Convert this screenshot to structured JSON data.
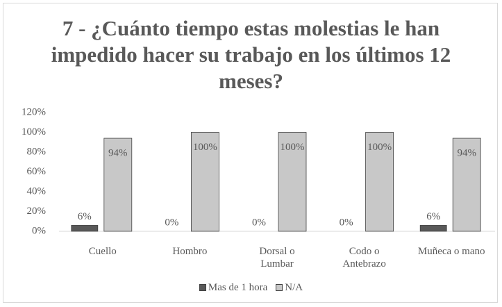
{
  "chart_data": {
    "type": "bar",
    "title": "7 - ¿Cuánto tiempo estas molestias le han impedido hacer su trabajo en los últimos 12 meses?",
    "categories": [
      "Cuello",
      "Hombro",
      "Dorsal o Lumbar",
      "Codo o Antebrazo",
      "Muñeca o mano"
    ],
    "series": [
      {
        "name": "Mas de 1 hora",
        "color": "#595959",
        "values": [
          6,
          0,
          0,
          0,
          6
        ],
        "value_labels": [
          "6%",
          "0%",
          "0%",
          "0%",
          "6%"
        ]
      },
      {
        "name": "N/A",
        "color": "#c8c8c8",
        "values": [
          94,
          100,
          100,
          100,
          94
        ],
        "value_labels": [
          "94%",
          "100%",
          "100%",
          "100%",
          "94%"
        ]
      }
    ],
    "ylim": [
      0,
      120
    ],
    "yticks": [
      {
        "value": 0,
        "label": "0%"
      },
      {
        "value": 20,
        "label": "20%"
      },
      {
        "value": 40,
        "label": "40%"
      },
      {
        "value": 60,
        "label": "60%"
      },
      {
        "value": 80,
        "label": "80%"
      },
      {
        "value": 100,
        "label": "100%"
      },
      {
        "value": 120,
        "label": "120%"
      }
    ],
    "legend": "bottom"
  }
}
